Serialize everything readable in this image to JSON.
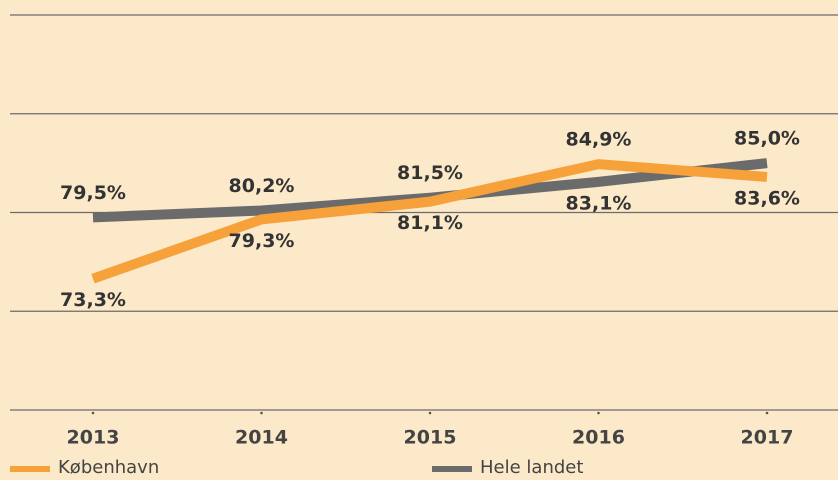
{
  "chart_data": {
    "type": "line",
    "categories": [
      "2013",
      "2014",
      "2015",
      "2016",
      "2017"
    ],
    "series": [
      {
        "name": "København",
        "color": "#f7a13a",
        "values": [
          73.3,
          79.3,
          81.1,
          84.9,
          83.6
        ],
        "value_labels": [
          "73,3%",
          "79,3%",
          "81,1%",
          "84,9%",
          "83,6%"
        ]
      },
      {
        "name": "Hele landet",
        "color": "#6b6b6b",
        "values": [
          79.5,
          80.2,
          81.5,
          83.1,
          85.0
        ],
        "value_labels": [
          "79,5%",
          "80,2%",
          "81,5%",
          "83,1%",
          "85,0%"
        ]
      }
    ],
    "ylim": [
      60,
      100
    ],
    "yticks": [
      60,
      70,
      80,
      90,
      100
    ],
    "grid": true
  }
}
